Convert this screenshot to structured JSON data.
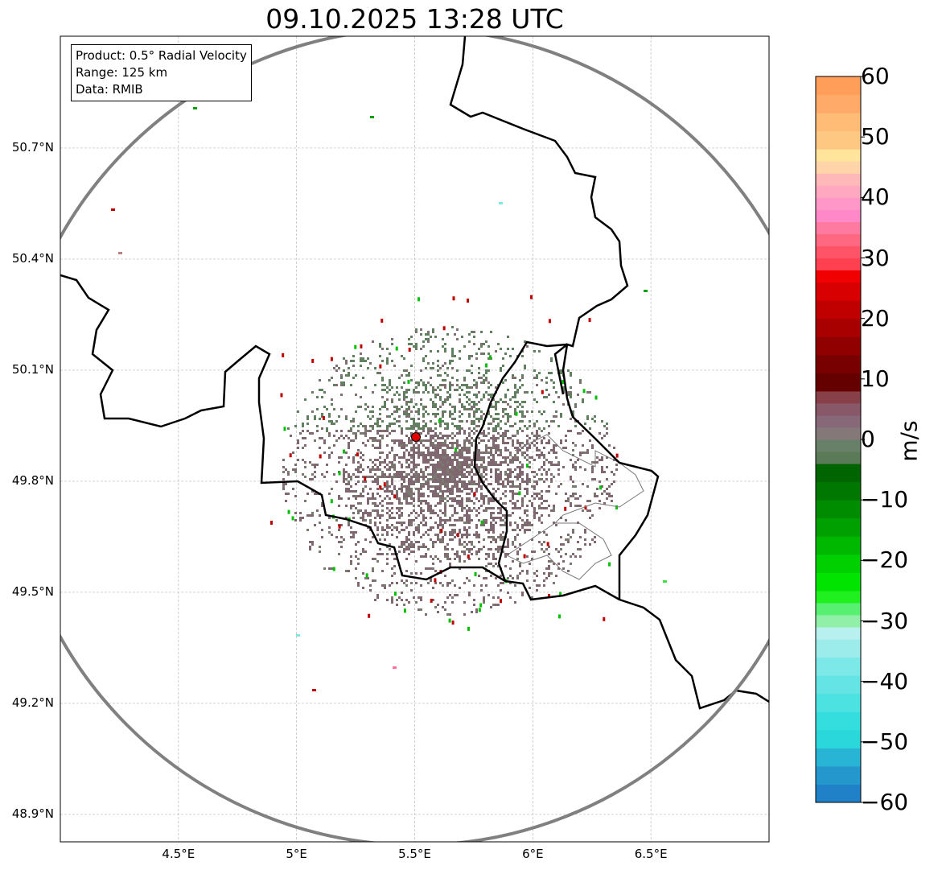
{
  "title": "09.10.2025 13:28 UTC",
  "info": {
    "product": "Product: 0.5° Radial Velocity",
    "range": "Range: 125 km",
    "data": "Data: RMIB"
  },
  "map": {
    "lon_range": [
      4.0,
      7.0
    ],
    "lat_range": [
      48.826,
      51.002
    ],
    "radar_site": {
      "lon": 5.505,
      "lat": 49.915
    },
    "range_km": 125,
    "lat_ticks": [
      {
        "value": 50.7,
        "label": "50.7°N"
      },
      {
        "value": 50.4,
        "label": "50.4°N"
      },
      {
        "value": 50.1,
        "label": "50.1°N"
      },
      {
        "value": 49.8,
        "label": "49.8°N"
      },
      {
        "value": 49.5,
        "label": "49.5°N"
      },
      {
        "value": 49.2,
        "label": "49.2°N"
      },
      {
        "value": 48.9,
        "label": "48.9°N"
      }
    ],
    "lon_ticks": [
      {
        "value": 4.5,
        "label": "4.5°E"
      },
      {
        "value": 5.0,
        "label": "5°E"
      },
      {
        "value": 5.5,
        "label": "5.5°E"
      },
      {
        "value": 6.0,
        "label": "6°E"
      },
      {
        "value": 6.5,
        "label": "6.5°E"
      }
    ]
  },
  "colorbar": {
    "label": "m/s",
    "range": [
      -60,
      60
    ],
    "ticks": [
      {
        "value": 60,
        "label": "60"
      },
      {
        "value": 50,
        "label": "50"
      },
      {
        "value": 40,
        "label": "40"
      },
      {
        "value": 30,
        "label": "30"
      },
      {
        "value": 20,
        "label": "20"
      },
      {
        "value": 10,
        "label": "10"
      },
      {
        "value": 0,
        "label": "0"
      },
      {
        "value": -10,
        "label": "−10"
      },
      {
        "value": -20,
        "label": "−20"
      },
      {
        "value": -30,
        "label": "−30"
      },
      {
        "value": -40,
        "label": "−40"
      },
      {
        "value": -50,
        "label": "−50"
      },
      {
        "value": -60,
        "label": "−60"
      }
    ],
    "segments": [
      [
        -60,
        -57,
        "#2080c8"
      ],
      [
        -57,
        -54,
        "#2498cc"
      ],
      [
        -54,
        -51,
        "#28b4d4"
      ],
      [
        -51,
        -48,
        "#2ad8dc"
      ],
      [
        -48,
        -45,
        "#34dede"
      ],
      [
        -45,
        -42,
        "#4ce2e2"
      ],
      [
        -42,
        -39,
        "#64e4e4"
      ],
      [
        -39,
        -36,
        "#7ce8e8"
      ],
      [
        -36,
        -33,
        "#9cecec"
      ],
      [
        -33,
        -31,
        "#b8f0f0"
      ],
      [
        -31,
        -29,
        "#90f0a8"
      ],
      [
        -29,
        -27,
        "#58f070"
      ],
      [
        -27,
        -25,
        "#20f020"
      ],
      [
        -25,
        -22,
        "#00e400"
      ],
      [
        -22,
        -19,
        "#00d000"
      ],
      [
        -19,
        -16,
        "#00b800"
      ],
      [
        -16,
        -13,
        "#00a000"
      ],
      [
        -13,
        -10,
        "#008c00"
      ],
      [
        -10,
        -7,
        "#007800"
      ],
      [
        -7,
        -4,
        "#006400"
      ],
      [
        -4,
        -2,
        "#5a7a58"
      ],
      [
        -2,
        0,
        "#688068"
      ],
      [
        0,
        2,
        "#847878"
      ],
      [
        2,
        4,
        "#866878"
      ],
      [
        4,
        6,
        "#885868"
      ],
      [
        6,
        8,
        "#884048"
      ],
      [
        8,
        11,
        "#640000"
      ],
      [
        11,
        14,
        "#780000"
      ],
      [
        14,
        17,
        "#900000"
      ],
      [
        17,
        20,
        "#a80000"
      ],
      [
        20,
        23,
        "#c00000"
      ],
      [
        23,
        26,
        "#d80000"
      ],
      [
        26,
        28,
        "#f00000"
      ],
      [
        28,
        30,
        "#ff4050"
      ],
      [
        30,
        32,
        "#ff5468"
      ],
      [
        32,
        34,
        "#ff6880"
      ],
      [
        34,
        36,
        "#ff7aa0"
      ],
      [
        36,
        38,
        "#ff88c8"
      ],
      [
        38,
        40,
        "#ff98c8"
      ],
      [
        40,
        42,
        "#ffa8c0"
      ],
      [
        42,
        44,
        "#ffb8b8"
      ],
      [
        44,
        46,
        "#ffd4a8"
      ],
      [
        46,
        48,
        "#ffe49c"
      ],
      [
        48,
        51,
        "#ffc882"
      ],
      [
        51,
        54,
        "#ffbc76"
      ],
      [
        54,
        57,
        "#ffaa68"
      ],
      [
        57,
        60,
        "#ff9e58"
      ]
    ]
  }
}
